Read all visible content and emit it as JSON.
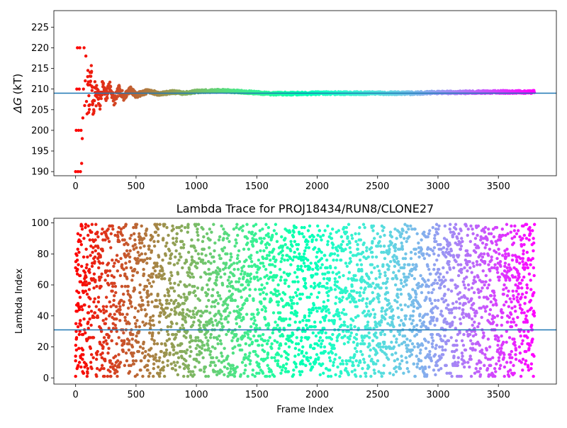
{
  "chart_data": [
    {
      "type": "scatter",
      "ylabel_symbol": "ΔG",
      "ylabel_unit": "(kT)",
      "xlim": [
        -180,
        3980
      ],
      "ylim": [
        189,
        229
      ],
      "x_ticks": [
        0,
        500,
        1000,
        1500,
        2000,
        2500,
        3000,
        3500
      ],
      "y_ticks": [
        190,
        195,
        200,
        205,
        210,
        215,
        220,
        225
      ],
      "reference_line": 209,
      "reference_color": "#1f77b4",
      "n_frames": 3800,
      "colormap": "rainbow",
      "series": [
        {
          "color_by": "frame_index",
          "points": [
            [
              0,
              190
            ],
            [
              5,
              200
            ],
            [
              10,
              210
            ],
            [
              15,
              220
            ],
            [
              20,
              190
            ],
            [
              25,
              200
            ],
            [
              30,
              210
            ],
            [
              35,
              220
            ],
            [
              40,
              190
            ],
            [
              45,
              200
            ],
            [
              50,
              192
            ],
            [
              55,
              198
            ],
            [
              60,
              203
            ],
            [
              65,
              210
            ],
            [
              70,
              220
            ],
            [
              75,
              206
            ],
            [
              80,
              212
            ],
            [
              85,
              218
            ],
            [
              90,
              207
            ],
            [
              95,
              204
            ],
            [
              100,
              213
            ],
            [
              110,
              206
            ],
            [
              120,
              211
            ],
            [
              130,
              214
            ],
            [
              140,
              207
            ],
            [
              150,
              205
            ],
            [
              160,
              212
            ],
            [
              170,
              208
            ],
            [
              180,
              210
            ],
            [
              200,
              206
            ],
            [
              220,
              211
            ],
            [
              250,
              208
            ],
            [
              280,
              211
            ],
            [
              320,
              207
            ],
            [
              360,
              210
            ],
            [
              400,
              208
            ],
            [
              450,
              210
            ],
            [
              500,
              208.5
            ],
            [
              600,
              209.5
            ],
            [
              700,
              208.8
            ],
            [
              800,
              209.3
            ],
            [
              900,
              209.0
            ],
            [
              1000,
              209.4
            ],
            [
              1200,
              209.6
            ],
            [
              1400,
              209.3
            ],
            [
              1600,
              208.9
            ],
            [
              1800,
              208.9
            ],
            [
              2000,
              209.0
            ],
            [
              2200,
              209.0
            ],
            [
              2500,
              209.0
            ],
            [
              2800,
              209.0
            ],
            [
              3000,
              209.2
            ],
            [
              3200,
              209.2
            ],
            [
              3500,
              209.3
            ],
            [
              3790,
              209.3
            ]
          ]
        }
      ]
    },
    {
      "type": "scatter",
      "title": "Lambda Trace for PROJ18434/RUN8/CLONE27",
      "xlabel": "Frame Index",
      "ylabel": "Lambda Index",
      "xlim": [
        -180,
        3980
      ],
      "ylim": [
        -4,
        103
      ],
      "x_ticks": [
        0,
        500,
        1000,
        1500,
        2000,
        2500,
        3000,
        3500
      ],
      "y_ticks": [
        0,
        20,
        40,
        60,
        80,
        100
      ],
      "reference_line": 31,
      "reference_color": "#1f77b4",
      "n_frames": 3800,
      "colormap": "rainbow",
      "series": [
        {
          "color_by": "frame_index",
          "distribution": "uniform lambda indices 1–99 over frames 0–3799",
          "points": [
            [
              0,
              1
            ],
            [
              0,
              11
            ],
            [
              0,
              14
            ],
            [
              5,
              43
            ],
            [
              10,
              56
            ],
            [
              20,
              48
            ],
            [
              30,
              28
            ],
            [
              40,
              92
            ],
            [
              50,
              72
            ],
            [
              60,
              18
            ],
            [
              80,
              60
            ],
            [
              100,
              35
            ],
            [
              150,
              88
            ],
            [
              200,
              5
            ],
            [
              300,
              66
            ],
            [
              400,
              22
            ],
            [
              500,
              97
            ],
            [
              700,
              40
            ],
            [
              900,
              12
            ],
            [
              1100,
              75
            ],
            [
              1300,
              50
            ],
            [
              1500,
              3
            ],
            [
              1700,
              85
            ],
            [
              1900,
              30
            ],
            [
              2100,
              63
            ],
            [
              2300,
              8
            ],
            [
              2500,
              93
            ],
            [
              2700,
              44
            ],
            [
              2900,
              19
            ],
            [
              3100,
              70
            ],
            [
              3300,
              55
            ],
            [
              3500,
              26
            ],
            [
              3700,
              90
            ],
            [
              3790,
              1
            ]
          ]
        }
      ]
    }
  ]
}
